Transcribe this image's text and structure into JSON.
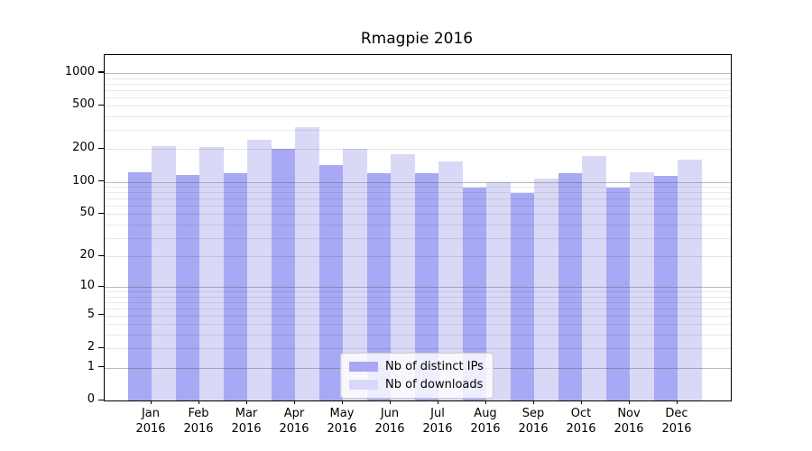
{
  "title": "Rmagpie 2016",
  "legend": {
    "entries": [
      {
        "label": "Nb of distinct IPs",
        "color": "#a8a8f5"
      },
      {
        "label": "Nb of downloads",
        "color": "#d9d9f7"
      }
    ]
  },
  "chart_data": {
    "type": "bar",
    "title": "Rmagpie 2016",
    "xlabel": "",
    "ylabel": "",
    "year": "2016",
    "categories": [
      "Jan",
      "Feb",
      "Mar",
      "Apr",
      "May",
      "Jun",
      "Jul",
      "Aug",
      "Sep",
      "Oct",
      "Nov",
      "Dec"
    ],
    "series": [
      {
        "name": "Nb of distinct IPs",
        "color": "#a8a8f5",
        "values": [
          122,
          116,
          119,
          200,
          144,
          121,
          120,
          89,
          79,
          121,
          88,
          113
        ]
      },
      {
        "name": "Nb of downloads",
        "color": "#d9d9f7",
        "values": [
          215,
          211,
          242,
          318,
          200,
          181,
          154,
          100,
          108,
          172,
          122,
          160
        ]
      }
    ],
    "yscale": "log(1+y)",
    "ylim": [
      0,
      1460
    ],
    "y_ticks": [
      0,
      1,
      2,
      5,
      10,
      20,
      50,
      100,
      200,
      500,
      1000
    ],
    "y_tick_labels": [
      "0",
      "1",
      "2",
      "5",
      "10",
      "20",
      "50",
      "100",
      "200",
      "500",
      "1000"
    ],
    "grid": "horizontal major+minor gridlines drawn over bars, decade lines darker",
    "legend_position": "bottom center inside plot"
  }
}
